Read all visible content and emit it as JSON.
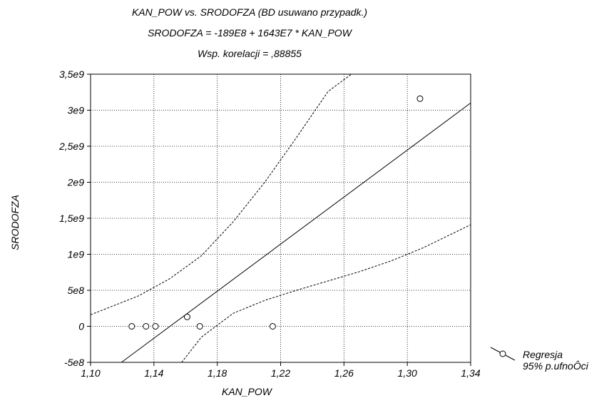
{
  "chart_data": {
    "type": "scatter",
    "title_lines": [
      "KAN_POW vs. SRODOFZA (BD usuwano przypadk.)",
      "SRODOFZA = -189E8 + 1643E7 * KAN_POW",
      "Wsp. korelacji = ,88855"
    ],
    "xlabel": "KAN_POW",
    "ylabel": "SRODOFZA",
    "xlim": [
      1.1,
      1.34
    ],
    "ylim": [
      -500000000.0,
      3500000000.0
    ],
    "xticks": [
      1.1,
      1.14,
      1.18,
      1.22,
      1.26,
      1.3,
      1.34
    ],
    "xtick_labels": [
      "1,10",
      "1,14",
      "1,18",
      "1,22",
      "1,26",
      "1,30",
      "1,34"
    ],
    "yticks": [
      -500000000.0,
      0,
      500000000.0,
      1000000000.0,
      1500000000.0,
      2000000000.0,
      2500000000.0,
      3000000000.0,
      3500000000.0
    ],
    "ytick_labels": [
      "-5e8",
      "0",
      "5e8",
      "1e9",
      "1,5e9",
      "2e9",
      "2,5e9",
      "3e9",
      "3,5e9"
    ],
    "grid": true,
    "legend_position": "bottom-right outside",
    "points": [
      {
        "x": 1.126,
        "y": 0
      },
      {
        "x": 1.135,
        "y": 0
      },
      {
        "x": 1.141,
        "y": 0
      },
      {
        "x": 1.161,
        "y": 130000000.0
      },
      {
        "x": 1.169,
        "y": 0
      },
      {
        "x": 1.215,
        "y": 0
      },
      {
        "x": 1.308,
        "y": 3160000000.0
      }
    ],
    "regression": {
      "name": "Regresja",
      "intercept": -18900000000.0,
      "slope": 16430000000.0,
      "points": [
        [
          1.1195,
          -500000000.0
        ],
        [
          1.34,
          3100000000.0
        ]
      ]
    },
    "confidence_band": {
      "name": "95% p.ufnoÔci",
      "upper": [
        [
          1.1,
          160000000.0
        ],
        [
          1.13,
          420000000.0
        ],
        [
          1.15,
          660000000.0
        ],
        [
          1.17,
          980000000.0
        ],
        [
          1.19,
          1450000000.0
        ],
        [
          1.21,
          2000000000.0
        ],
        [
          1.23,
          2620000000.0
        ],
        [
          1.25,
          3260000000.0
        ],
        [
          1.2647,
          3500000000.0
        ]
      ],
      "lower": [
        [
          1.1575,
          -500000000.0
        ],
        [
          1.17,
          -150000000.0
        ],
        [
          1.19,
          180000000.0
        ],
        [
          1.21,
          360000000.0
        ],
        [
          1.23,
          500000000.0
        ],
        [
          1.25,
          630000000.0
        ],
        [
          1.27,
          760000000.0
        ],
        [
          1.29,
          910000000.0
        ],
        [
          1.31,
          1090000000.0
        ],
        [
          1.34,
          1410000000.0
        ]
      ]
    },
    "legend": [
      "Regresja",
      "95% p.ufnoÔci"
    ]
  }
}
